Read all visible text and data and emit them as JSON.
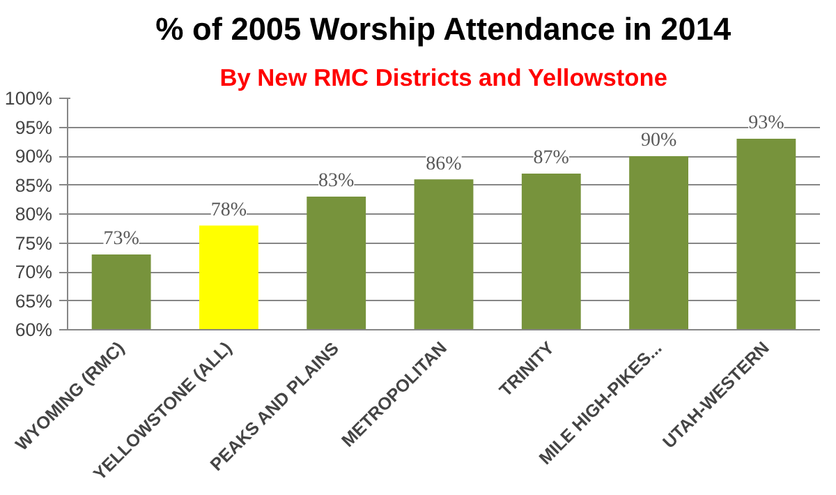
{
  "chart_data": {
    "type": "bar",
    "title": "% of 2005 Worship Attendance in 2014",
    "subtitle": "By New RMC Districts and Yellowstone",
    "categories": [
      "WYOMING (RMC)",
      "YELLOWSTONE (ALL)",
      "PEAKS AND PLAINS",
      "METROPOLITAN",
      "TRINITY",
      "MILE HIGH-PIKES...",
      "UTAH-WESTERN"
    ],
    "values": [
      73,
      78,
      83,
      86,
      87,
      90,
      93
    ],
    "colors": [
      "#77933c",
      "#ffff00",
      "#77933c",
      "#77933c",
      "#77933c",
      "#77933c",
      "#77933c"
    ],
    "value_labels": [
      "73%",
      "78%",
      "83%",
      "86%",
      "87%",
      "90%",
      "93%"
    ],
    "ylim": [
      60,
      100
    ],
    "yticks": [
      {
        "value": 60,
        "label": "60%"
      },
      {
        "value": 65,
        "label": "65%"
      },
      {
        "value": 70,
        "label": "70%"
      },
      {
        "value": 75,
        "label": "75%"
      },
      {
        "value": 80,
        "label": "80%"
      },
      {
        "value": 85,
        "label": "85%"
      },
      {
        "value": 90,
        "label": "90%"
      },
      {
        "value": 95,
        "label": "95%"
      },
      {
        "value": 100,
        "label": "100%"
      }
    ],
    "grid": "y"
  }
}
